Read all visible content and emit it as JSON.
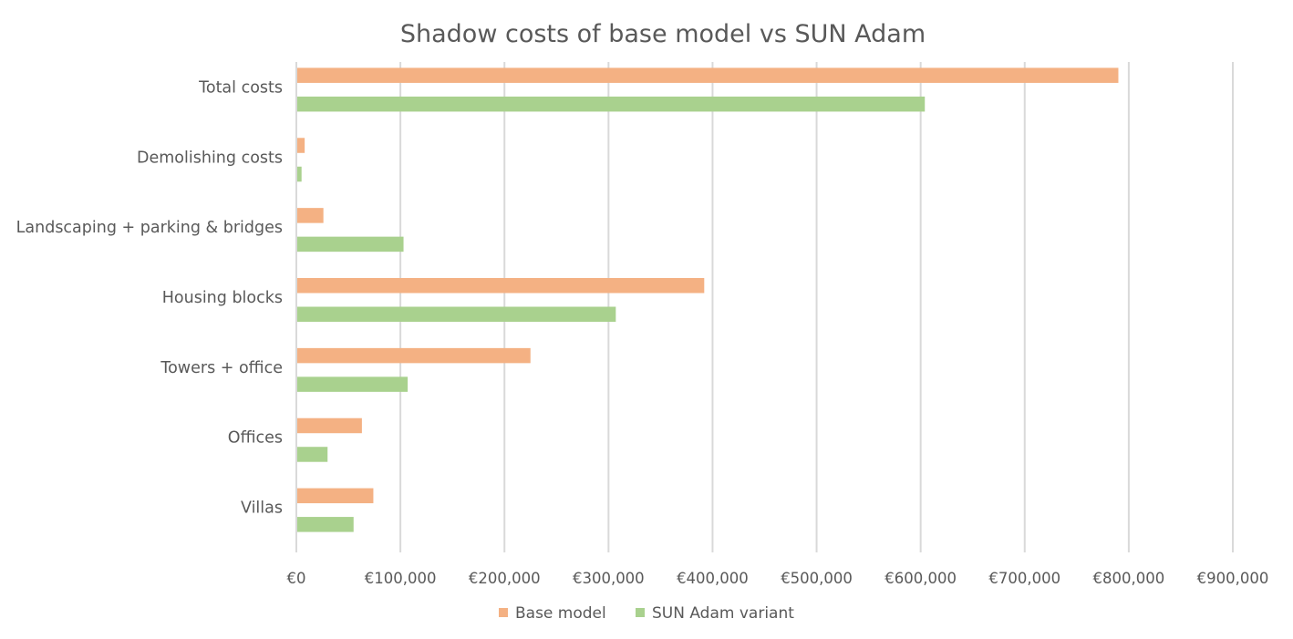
{
  "chart_data": {
    "type": "bar",
    "orientation": "horizontal",
    "title": "Shadow costs of base model vs SUN Adam",
    "categories": [
      "Total costs",
      "Demolishing costs",
      "Landscaping + parking & bridges",
      "Housing blocks",
      "Towers + office",
      "Offices",
      "Villas"
    ],
    "series": [
      {
        "name": "Base model",
        "color": "#F4B183",
        "values": [
          790000,
          8000,
          26000,
          392000,
          225000,
          63000,
          74000
        ]
      },
      {
        "name": "SUN Adam variant",
        "color": "#A9D18E",
        "values": [
          604000,
          5000,
          103000,
          307000,
          107000,
          30000,
          55000
        ]
      }
    ],
    "xlim": [
      0,
      900000
    ],
    "xticks": [
      0,
      100000,
      200000,
      300000,
      400000,
      500000,
      600000,
      700000,
      800000,
      900000
    ],
    "xtick_labels": [
      "€0",
      "€100,000",
      "€200,000",
      "€300,000",
      "€400,000",
      "€500,000",
      "€600,000",
      "€700,000",
      "€800,000",
      "€900,000"
    ],
    "xlabel": "",
    "ylabel": "",
    "grid": true,
    "legend_position": "bottom",
    "gridline_color": "#D9D9D9"
  }
}
